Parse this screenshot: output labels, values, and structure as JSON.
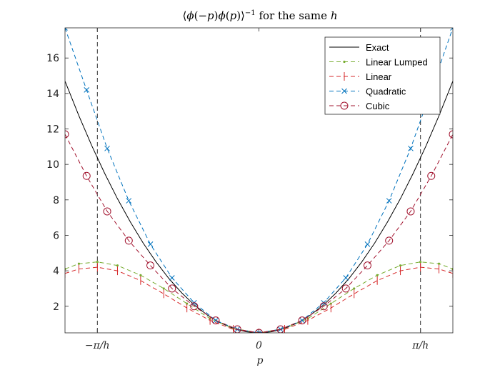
{
  "chart_data": {
    "type": "line",
    "title_parts": [
      "⟨",
      "ϕ",
      "(−",
      "p",
      ")",
      "ϕ",
      "(",
      "p",
      ")⟩",
      "−1",
      " for the same ",
      "h"
    ],
    "xlabel": "p",
    "x_ticks": [
      {
        "value": -3.1416,
        "label": "−π/h"
      },
      {
        "value": 0,
        "label": "0"
      },
      {
        "value": 3.1416,
        "label": "π/h"
      }
    ],
    "xlim": [
      -3.77,
      3.77
    ],
    "ylim": [
      0.5,
      17.7
    ],
    "y_ticks": [
      2,
      4,
      6,
      8,
      10,
      12,
      14,
      16
    ],
    "y_tick_labels": [
      "2",
      "4",
      "6",
      "8",
      "10",
      "12",
      "14",
      "16"
    ],
    "vertical_lines": [
      -3.1416,
      3.1416
    ],
    "legend_position": "top-right",
    "series": [
      {
        "name": "Exact",
        "color": "#000000",
        "dash": "",
        "marker": "none",
        "x": [
          -3.77,
          -3.5,
          -3.25,
          -3.0,
          -2.75,
          -2.5,
          -2.25,
          -2.0,
          -1.75,
          -1.5,
          -1.25,
          -1.0,
          -0.75,
          -0.5,
          -0.25,
          0,
          0.25,
          0.5,
          0.75,
          1.0,
          1.25,
          1.5,
          1.75,
          2.0,
          2.25,
          2.5,
          2.75,
          3.0,
          3.25,
          3.5,
          3.77
        ],
        "y": [
          14.7,
          12.75,
          11.06,
          9.5,
          8.06,
          6.75,
          5.56,
          4.5,
          3.56,
          2.75,
          2.06,
          1.5,
          1.06,
          0.75,
          0.56,
          0.5,
          0.56,
          0.75,
          1.06,
          1.5,
          2.06,
          2.75,
          3.56,
          4.5,
          5.56,
          6.75,
          8.06,
          9.5,
          11.06,
          12.75,
          14.7
        ]
      },
      {
        "name": "Linear Lumped",
        "color": "#77AC30",
        "dash": "6,4",
        "marker": "dot",
        "x": [
          -3.77,
          -3.5,
          -3.14,
          -2.75,
          -2.3,
          -1.85,
          -1.4,
          -0.95,
          -0.5,
          0,
          0.5,
          0.95,
          1.4,
          1.85,
          2.3,
          2.75,
          3.14,
          3.5,
          3.77
        ],
        "y": [
          4.1,
          4.4,
          4.5,
          4.3,
          3.75,
          3.0,
          2.15,
          1.3,
          0.75,
          0.5,
          0.75,
          1.3,
          2.15,
          3.0,
          3.75,
          4.3,
          4.5,
          4.4,
          4.1
        ]
      },
      {
        "name": "Linear",
        "color": "#D62728",
        "dash": "6,4",
        "marker": "tick",
        "x": [
          -3.77,
          -3.5,
          -3.14,
          -2.75,
          -2.3,
          -1.85,
          -1.4,
          -0.95,
          -0.5,
          0,
          0.5,
          0.95,
          1.4,
          1.85,
          2.3,
          2.75,
          3.14,
          3.5,
          3.77
        ],
        "y": [
          3.85,
          4.1,
          4.2,
          4.0,
          3.45,
          2.7,
          1.9,
          1.2,
          0.7,
          0.5,
          0.7,
          1.2,
          1.9,
          2.7,
          3.45,
          4.0,
          4.2,
          4.1,
          3.85
        ]
      },
      {
        "name": "Quadratic",
        "color": "#0072BD",
        "dash": "6,4",
        "marker": "x",
        "x": [
          -3.77,
          -3.35,
          -2.95,
          -2.53,
          -2.11,
          -1.69,
          -1.26,
          -0.84,
          -0.42,
          0,
          0.42,
          0.84,
          1.26,
          1.69,
          2.11,
          2.53,
          2.95,
          3.35,
          3.77
        ],
        "y": [
          17.7,
          14.2,
          10.9,
          7.95,
          5.5,
          3.6,
          2.2,
          1.2,
          0.7,
          0.5,
          0.7,
          1.2,
          2.2,
          3.6,
          5.5,
          7.95,
          10.9,
          14.2,
          17.7
        ]
      },
      {
        "name": "Cubic",
        "color": "#A2142F",
        "dash": "6,4",
        "marker": "circle",
        "x": [
          -3.77,
          -3.35,
          -2.95,
          -2.53,
          -2.11,
          -1.69,
          -1.26,
          -0.84,
          -0.42,
          0,
          0.42,
          0.84,
          1.26,
          1.69,
          2.11,
          2.53,
          2.95,
          3.35,
          3.77
        ],
        "y": [
          11.7,
          9.35,
          7.35,
          5.7,
          4.3,
          3.0,
          2.0,
          1.2,
          0.7,
          0.5,
          0.7,
          1.2,
          2.0,
          3.0,
          4.3,
          5.7,
          7.35,
          9.35,
          11.7
        ]
      }
    ]
  }
}
